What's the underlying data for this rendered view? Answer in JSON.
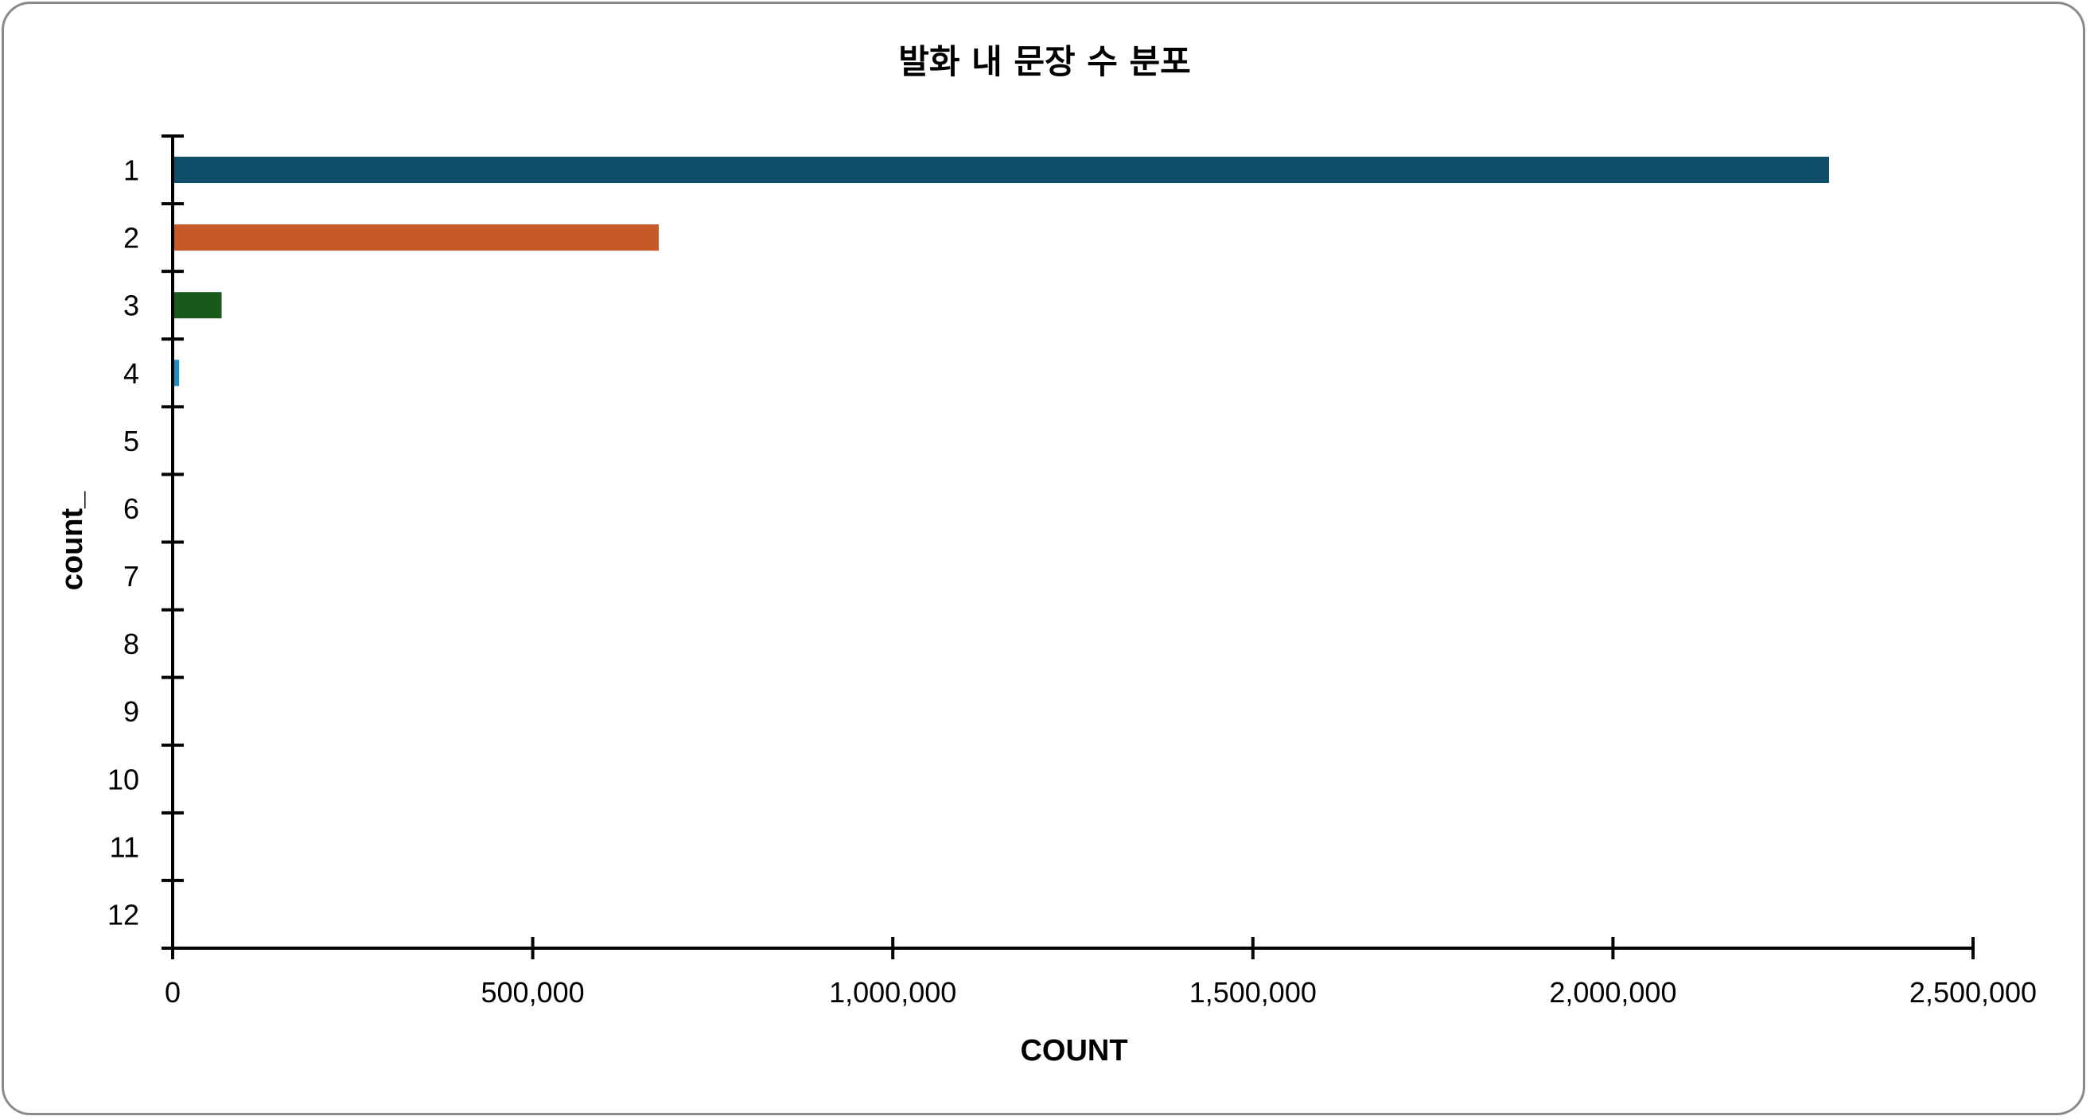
{
  "chart_data": {
    "type": "bar",
    "orientation": "horizontal",
    "title": "발화 내 문장 수 분포",
    "xlabel": "COUNT",
    "ylabel": "count_",
    "categories": [
      "1",
      "2",
      "3",
      "4",
      "5",
      "6",
      "7",
      "8",
      "9",
      "10",
      "11",
      "12"
    ],
    "values": [
      2300000,
      675000,
      68000,
      9000,
      0,
      0,
      0,
      0,
      0,
      0,
      0,
      0
    ],
    "bar_colors": [
      "#0f4e69",
      "#c55a28",
      "#175a1c",
      "#1f8fc2",
      "#0f4e69",
      "#c55a28",
      "#175a1c",
      "#1f8fc2",
      "#0f4e69",
      "#c55a28",
      "#175a1c",
      "#1f8fc2"
    ],
    "xlim": [
      0,
      2500000
    ],
    "x_ticks": [
      0,
      500000,
      1000000,
      1500000,
      2000000,
      2500000
    ],
    "x_tick_labels": [
      "0",
      "500,000",
      "1,000,000",
      "1,500,000",
      "2,000,000",
      "2,500,000"
    ],
    "grid": false,
    "legend": "none"
  }
}
